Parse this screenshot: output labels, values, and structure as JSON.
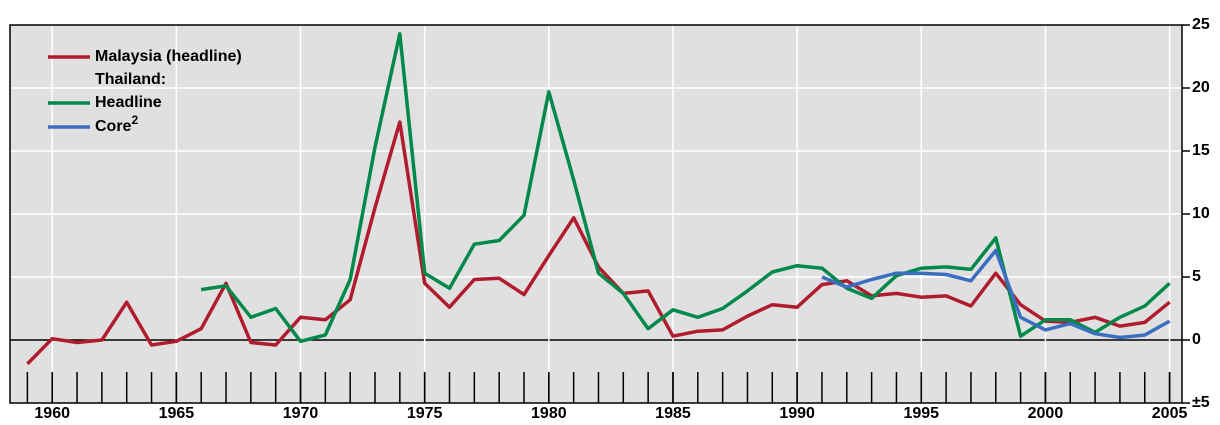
{
  "chart_data": {
    "type": "line",
    "x": [
      1959,
      1960,
      1961,
      1962,
      1963,
      1964,
      1965,
      1966,
      1967,
      1968,
      1969,
      1970,
      1971,
      1972,
      1973,
      1974,
      1975,
      1976,
      1977,
      1978,
      1979,
      1980,
      1981,
      1982,
      1983,
      1984,
      1985,
      1986,
      1987,
      1988,
      1989,
      1990,
      1991,
      1992,
      1993,
      1994,
      1995,
      1996,
      1997,
      1998,
      1999,
      2000,
      2001,
      2002,
      2003,
      2004,
      2005
    ],
    "legend_heading": "Thailand:",
    "series": [
      {
        "name": "Malaysia (headline)",
        "color": "#b01c2e",
        "values": [
          -1.9,
          0.1,
          -0.2,
          0.0,
          3.0,
          -0.4,
          -0.1,
          0.9,
          4.5,
          -0.2,
          -0.4,
          1.8,
          1.6,
          3.2,
          10.5,
          17.3,
          4.5,
          2.6,
          4.8,
          4.9,
          3.6,
          6.7,
          9.7,
          5.8,
          3.7,
          3.9,
          0.3,
          0.7,
          0.8,
          1.9,
          2.8,
          2.6,
          4.4,
          4.7,
          3.5,
          3.7,
          3.4,
          3.5,
          2.7,
          5.3,
          2.8,
          1.5,
          1.4,
          1.8,
          1.1,
          1.4,
          3.0
        ]
      },
      {
        "name": "Headline",
        "color": "#00894a",
        "values": [
          null,
          null,
          null,
          null,
          null,
          null,
          null,
          4.0,
          4.3,
          1.8,
          2.5,
          -0.1,
          0.4,
          4.8,
          15.3,
          24.3,
          5.3,
          4.1,
          7.6,
          7.9,
          9.9,
          19.7,
          12.7,
          5.3,
          3.7,
          0.9,
          2.4,
          1.8,
          2.5,
          3.9,
          5.4,
          5.9,
          5.7,
          4.1,
          3.3,
          5.1,
          5.7,
          5.8,
          5.6,
          8.1,
          0.3,
          1.6,
          1.6,
          0.6,
          1.8,
          2.7,
          4.5
        ]
      },
      {
        "name": "Core",
        "name_superscript": "2",
        "color": "#3a6ebf",
        "values": [
          null,
          null,
          null,
          null,
          null,
          null,
          null,
          null,
          null,
          null,
          null,
          null,
          null,
          null,
          null,
          null,
          null,
          null,
          null,
          null,
          null,
          null,
          null,
          null,
          null,
          null,
          null,
          null,
          null,
          null,
          null,
          null,
          5.0,
          4.2,
          4.8,
          5.3,
          5.3,
          5.2,
          4.7,
          7.1,
          1.8,
          0.8,
          1.3,
          0.5,
          0.2,
          0.4,
          1.5
        ]
      }
    ],
    "xlim": [
      1958.3,
      2005.5
    ],
    "xticks": [
      1960,
      1965,
      1970,
      1975,
      1980,
      1985,
      1990,
      1995,
      2000,
      2005
    ],
    "ylim": [
      -5,
      25
    ],
    "yticks": [
      {
        "value": -5,
        "label": "±5"
      },
      0,
      5,
      10,
      15,
      20,
      25
    ],
    "grid": true,
    "background": "#e0e0e0"
  }
}
